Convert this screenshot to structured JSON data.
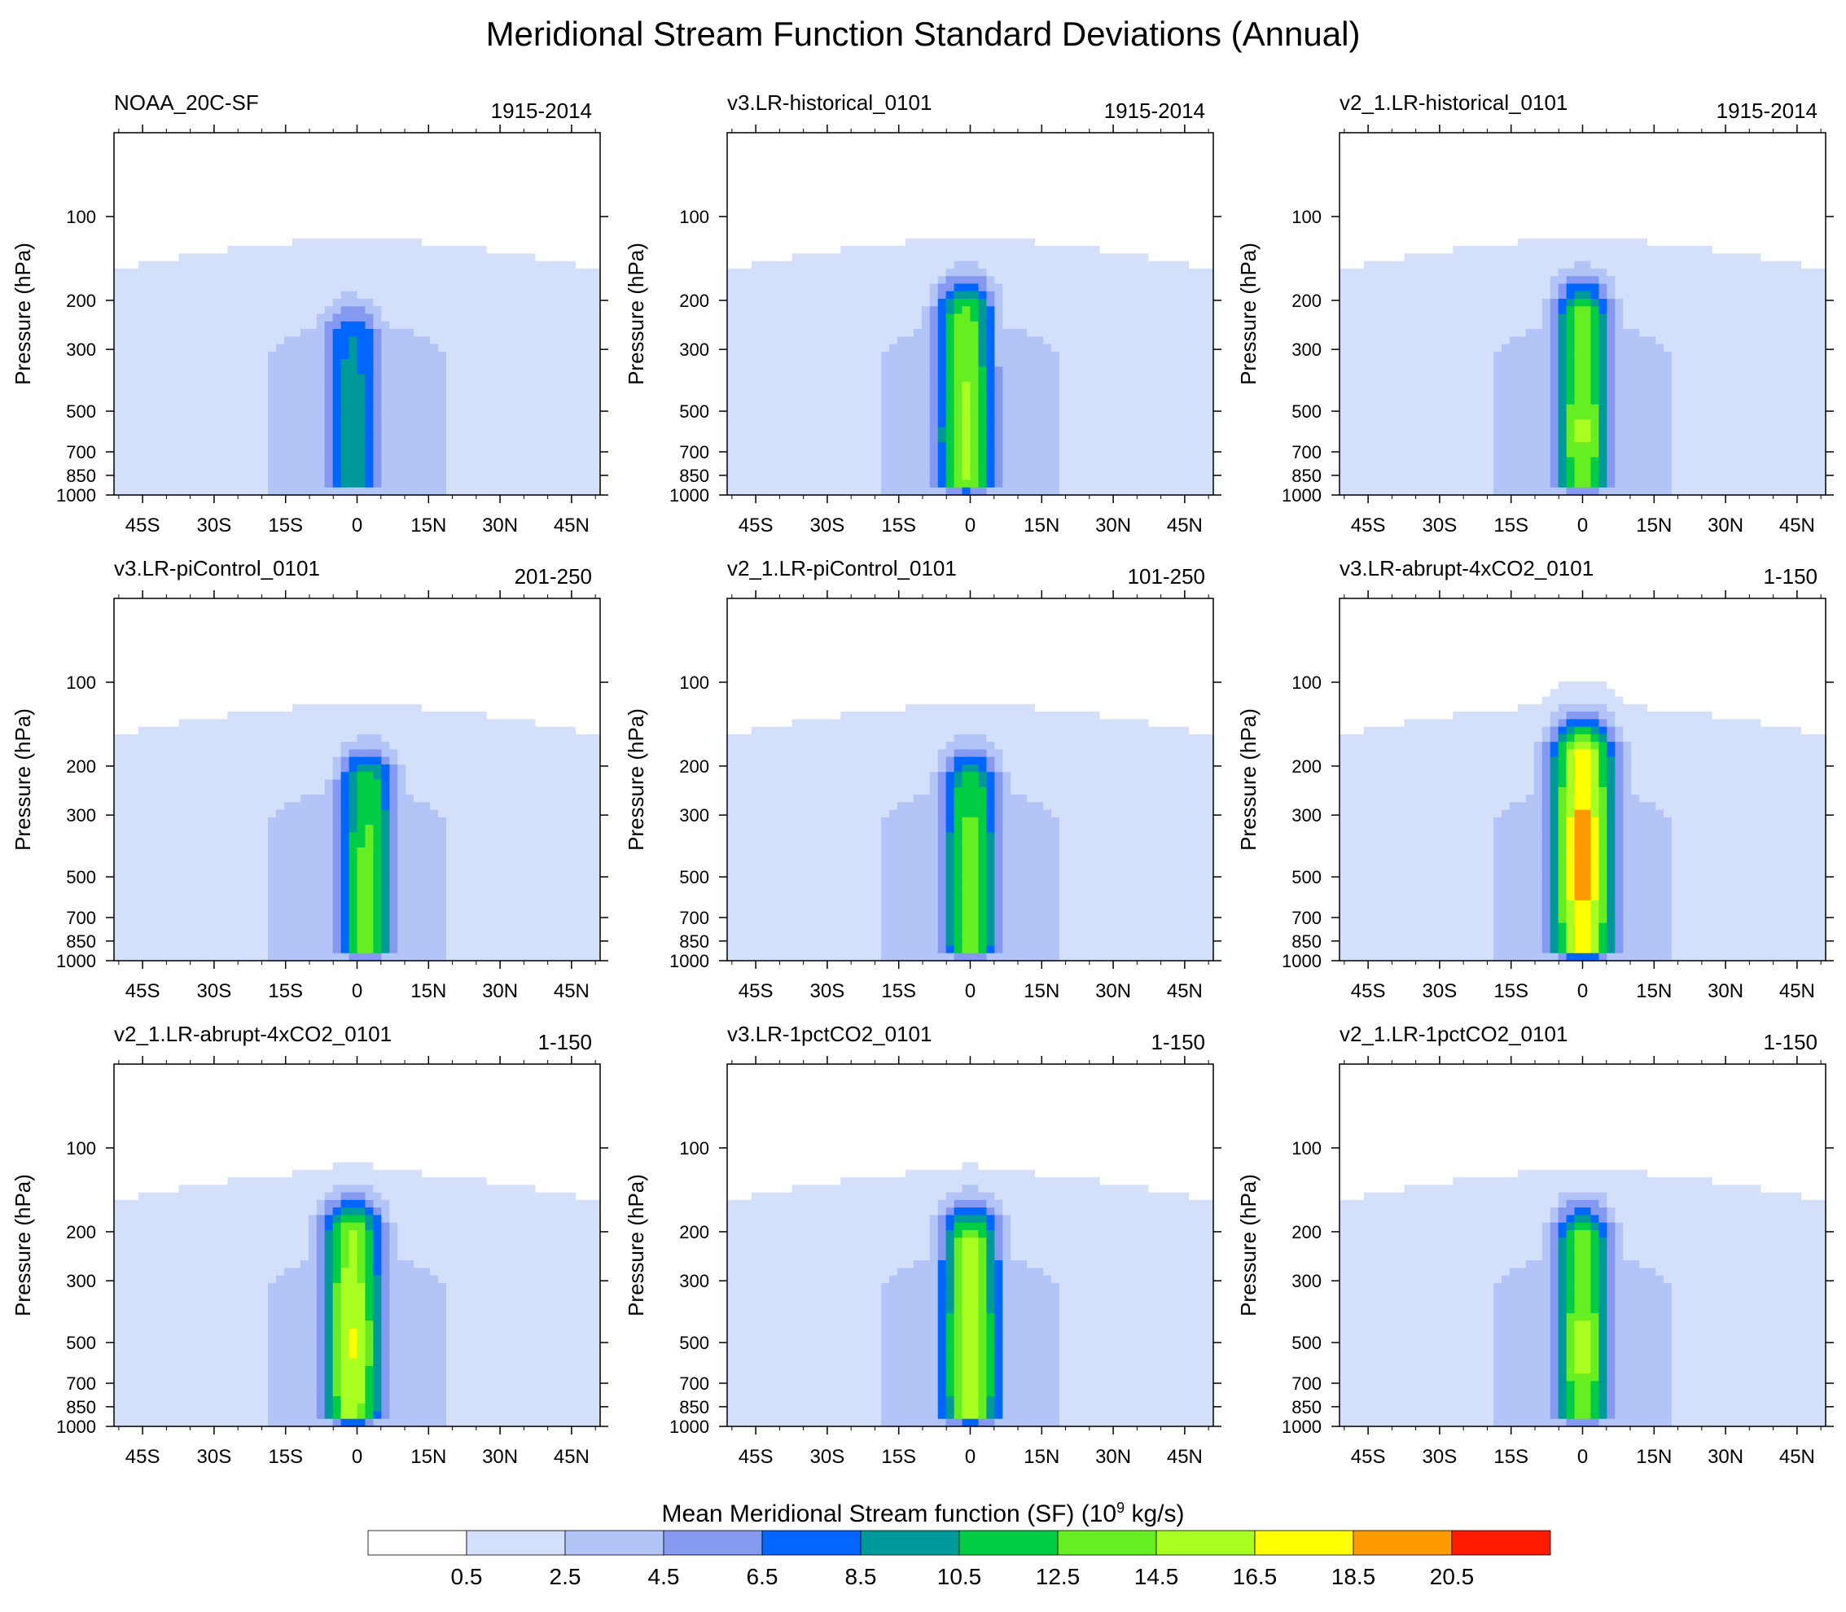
{
  "title": "Meridional Stream Function Standard Deviations (Annual)",
  "colorbar": {
    "title_prefix": "Mean Meridional Stream function (SF) (10",
    "title_exp": "9",
    "title_suffix": " kg/s)",
    "levels": [
      "0.5",
      "2.5",
      "4.5",
      "6.5",
      "8.5",
      "10.5",
      "12.5",
      "14.5",
      "16.5",
      "18.5",
      "20.5"
    ],
    "colors": [
      "#ffffff",
      "#d4e0fa",
      "#b3c4f7",
      "#8599f0",
      "#0066ff",
      "#009999",
      "#00cc44",
      "#66ee22",
      "#aaff22",
      "#ffff00",
      "#ff9900",
      "#ff1a00"
    ]
  },
  "chart_data": [
    {
      "type": "heatmap",
      "name": "NOAA_20C-SF",
      "period": "1915-2014",
      "ylabel": "Pressure (hPa)",
      "peak": 9.8,
      "peak_lat": -1,
      "peak_p": 650,
      "width": 7,
      "top_p": 280
    },
    {
      "type": "heatmap",
      "name": "v3.LR-historical_0101",
      "period": "1915-2014",
      "ylabel": "Pressure (hPa)",
      "peak": 15.2,
      "peak_lat": -1,
      "peak_p": 600,
      "width": 6.5,
      "top_p": 230
    },
    {
      "type": "heatmap",
      "name": "v2_1.LR-historical_0101",
      "period": "1915-2014",
      "ylabel": "Pressure (hPa)",
      "peak": 14.8,
      "peak_lat": 0,
      "peak_p": 600,
      "width": 6.5,
      "top_p": 230
    },
    {
      "type": "heatmap",
      "name": "v3.LR-piControl_0101",
      "period": "201-250",
      "ylabel": "Pressure (hPa)",
      "peak": 13.6,
      "peak_lat": 2,
      "peak_p": 600,
      "width": 6.5,
      "top_p": 240
    },
    {
      "type": "heatmap",
      "name": "v2_1.LR-piControl_0101",
      "period": "101-250",
      "ylabel": "Pressure (hPa)",
      "peak": 13.8,
      "peak_lat": 0,
      "peak_p": 550,
      "width": 6.5,
      "top_p": 240
    },
    {
      "type": "heatmap",
      "name": "v3.LR-abrupt-4xCO2_0101",
      "period": "1-150",
      "ylabel": "Pressure (hPa)",
      "peak": 19.5,
      "peak_lat": 0,
      "peak_p": 420,
      "width": 7,
      "top_p": 190
    },
    {
      "type": "heatmap",
      "name": "v2_1.LR-abrupt-4xCO2_0101",
      "period": "1-150",
      "ylabel": "Pressure (hPa)",
      "peak": 16.6,
      "peak_lat": -1,
      "peak_p": 500,
      "width": 6.8,
      "top_p": 210
    },
    {
      "type": "heatmap",
      "name": "v3.LR-1pctCO2_0101",
      "period": "1-150",
      "ylabel": "Pressure (hPa)",
      "peak": 16.6,
      "peak_lat": 0,
      "peak_p": 550,
      "width": 6.5,
      "top_p": 220
    },
    {
      "type": "heatmap",
      "name": "v2_1.LR-1pctCO2_0101",
      "period": "1-150",
      "ylabel": "Pressure (hPa)",
      "peak": 15.0,
      "peak_lat": 0,
      "peak_p": 520,
      "width": 6.5,
      "top_p": 220
    }
  ],
  "axes": {
    "xticks": [
      "45S",
      "30S",
      "15S",
      "0",
      "15N",
      "30N",
      "45N"
    ],
    "xtick_values": [
      -45,
      -30,
      -15,
      0,
      15,
      30,
      45
    ],
    "xlim": [
      -51,
      51
    ],
    "yticks": [
      "100",
      "200",
      "300",
      "500",
      "700",
      "850",
      "1000"
    ],
    "ytick_values": [
      100,
      200,
      300,
      500,
      700,
      850,
      1000
    ],
    "ylim": [
      50,
      1000
    ]
  }
}
